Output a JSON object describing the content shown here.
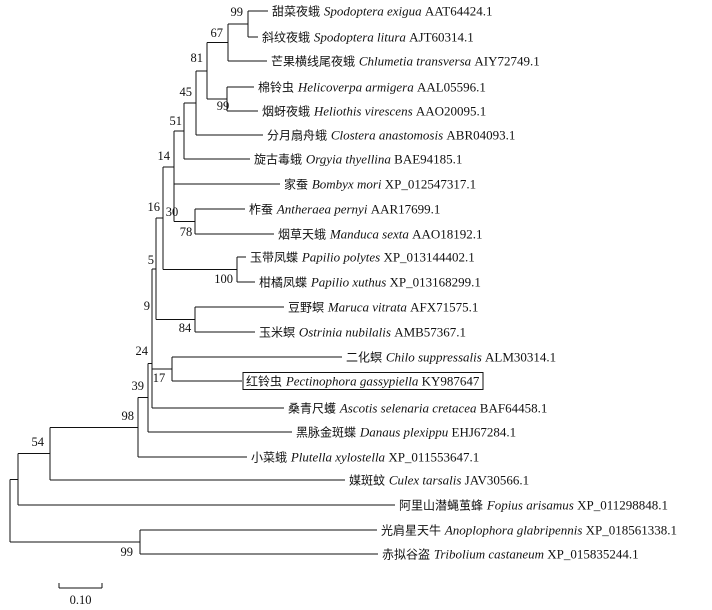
{
  "tree": {
    "leaves": [
      {
        "id": "L1",
        "cn": "甜菜夜蛾",
        "sci": "Spodoptera exigua",
        "acc": "AAT64424.1"
      },
      {
        "id": "L2",
        "cn": "斜纹夜蛾",
        "sci": "Spodoptera litura",
        "acc": "AJT60314.1"
      },
      {
        "id": "L3",
        "cn": "芒果横线尾夜蛾",
        "sci": "Chlumetia transversa",
        "acc": "AIY72749.1"
      },
      {
        "id": "L4",
        "cn": "棉铃虫",
        "sci": "Helicoverpa armigera",
        "acc": "AAL05596.1"
      },
      {
        "id": "L5",
        "cn": "烟蚜夜蛾",
        "sci": "Heliothis virescens",
        "acc": "AAO20095.1"
      },
      {
        "id": "L6",
        "cn": "分月扇舟蛾",
        "sci": "Clostera anastomosis",
        "acc": "ABR04093.1"
      },
      {
        "id": "L7",
        "cn": "旋古毒蛾",
        "sci": "Orgyia thyellina",
        "acc": "BAE94185.1"
      },
      {
        "id": "L8",
        "cn": "家蚕",
        "sci": "Bombyx mori",
        "acc": "XP_012547317.1"
      },
      {
        "id": "L9",
        "cn": "柞蚕",
        "sci": "Antheraea pernyi",
        "acc": "AAR17699.1"
      },
      {
        "id": "L10",
        "cn": "烟草天蛾",
        "sci": "Manduca sexta",
        "acc": "AAO18192.1"
      },
      {
        "id": "L11",
        "cn": "玉带凤蝶",
        "sci": "Papilio polytes",
        "acc": "XP_013144402.1"
      },
      {
        "id": "L12",
        "cn": "柑橘凤蝶",
        "sci": "Papilio xuthus",
        "acc": "XP_013168299.1"
      },
      {
        "id": "L13",
        "cn": "豆野螟",
        "sci": "Maruca vitrata",
        "acc": "AFX71575.1"
      },
      {
        "id": "L14",
        "cn": "玉米螟",
        "sci": "Ostrinia nubilalis",
        "acc": "AMB57367.1"
      },
      {
        "id": "L15",
        "cn": "二化螟",
        "sci": "Chilo suppressalis",
        "acc": "ALM30314.1"
      },
      {
        "id": "L16",
        "cn": "红铃虫",
        "sci": "Pectinophora gassypiella",
        "acc": "KY987647",
        "highlighted": true
      },
      {
        "id": "L17",
        "cn": "桑青尺蠖",
        "sci": "Ascotis selenaria cretacea",
        "acc": "BAF64458.1"
      },
      {
        "id": "L18",
        "cn": "黑脉金斑蝶",
        "sci": "Danaus plexippu",
        "acc": "EHJ67284.1"
      },
      {
        "id": "L19",
        "cn": "小菜蛾",
        "sci": "Plutella xylostella",
        "acc": "XP_011553647.1"
      },
      {
        "id": "L20",
        "cn": "媒斑蚊",
        "sci": "Culex tarsalis",
        "acc": "JAV30566.1"
      },
      {
        "id": "L21",
        "cn": "阿里山潜蝇茧蜂",
        "sci": "Fopius arisamus",
        "acc": "XP_011298848.1"
      },
      {
        "id": "L22",
        "cn": "光肩星天牛",
        "sci": "Anoplophora glabripennis",
        "acc": "XP_018561338.1"
      },
      {
        "id": "L23",
        "cn": "赤拟谷盗",
        "sci": "Tribolium castaneum",
        "acc": "XP_015835244.1"
      }
    ],
    "support_values": [
      {
        "node": "exigua-litura",
        "value": "99"
      },
      {
        "node": "spodoptera-chlumetia",
        "value": "67"
      },
      {
        "node": "noctuid-core",
        "value": "81"
      },
      {
        "node": "helicoverpa-heliothis",
        "value": "99"
      },
      {
        "node": "noctuidae",
        "value": "45"
      },
      {
        "node": "noctuoidea-clostera",
        "value": "51"
      },
      {
        "node": "noctuoidea",
        "value": "14"
      },
      {
        "node": "bombycoidea",
        "value": "30"
      },
      {
        "node": "antheraea-manduca",
        "value": "78"
      },
      {
        "node": "macro-core",
        "value": "16"
      },
      {
        "node": "papilio",
        "value": "100"
      },
      {
        "node": "macro-papilio",
        "value": "5"
      },
      {
        "node": "maruca-ostrinia",
        "value": "84"
      },
      {
        "node": "macro-crambid",
        "value": "9"
      },
      {
        "node": "chilo-pectinophora",
        "value": "17"
      },
      {
        "node": "macro-ascotis",
        "value": "24"
      },
      {
        "node": "macro-danaus",
        "value": "39"
      },
      {
        "node": "lepidoptera",
        "value": "98"
      },
      {
        "node": "lepidoptera-culex",
        "value": "54"
      },
      {
        "node": "coleoptera",
        "value": "99"
      }
    ],
    "scale_bar": {
      "label": "0.10"
    }
  }
}
